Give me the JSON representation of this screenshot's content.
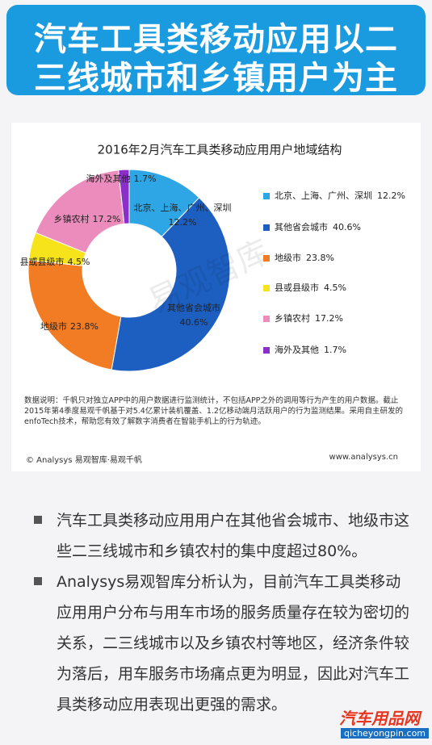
{
  "header": {
    "title_lines": [
      "汽车工具类移动应用以二",
      "三线城市和乡镇用户为主"
    ]
  },
  "chart_data": {
    "type": "pie",
    "donut": true,
    "title": "2016年2月汽车工具类移动应用用户地域结构",
    "categories": [
      "北京、上海、广州、深圳",
      "其他省会城市",
      "地级市",
      "县或县级市",
      "乡镇农村",
      "海外及其他"
    ],
    "values": [
      12.2,
      40.6,
      23.8,
      4.5,
      17.2,
      1.7
    ],
    "value_labels": [
      "12.2%",
      "40.6%",
      "23.8%",
      "4.5%",
      "17.2%",
      "1.7%"
    ],
    "colors": [
      "#2ea6e6",
      "#1d5fc0",
      "#f17c23",
      "#f6e31c",
      "#ec8cbc",
      "#8a2fc8"
    ],
    "legend": "right",
    "watermark": "易观智库"
  },
  "note": "数据说明：千帆只对独立APP中的用户数据进行监测统计，不包括APP之外的调用等行为产生的用户数据。截止2015年第4季度易观千帆基于对5.4亿累计装机覆盖、1.2亿移动端月活跃用户的行为监测结果。采用自主研发的enfoTech技术，帮助您有效了解数字消费者在智能手机上的行为轨迹。",
  "source": {
    "left": "© Analysys 易观智库·易观千帆",
    "right": "www.analysys.cn"
  },
  "bullets": [
    "汽车工具类移动应用用户在其他省会城市、地级市这些二三线城市和乡镇农村的集中度超过80%。",
    "Analysys易观智库分析认为，目前汽车工具类移动应用用户分布与用车市场的服务质量存在较为密切的关系，二三线城市以及乡镇农村等地区，经济条件较为落后，用车服务市场痛点更为明显，因此对汽车工具类移动应用表现出更强的需求。"
  ],
  "footer": {
    "logo": "汽车用品网",
    "url": "qicheyongpin.com"
  }
}
